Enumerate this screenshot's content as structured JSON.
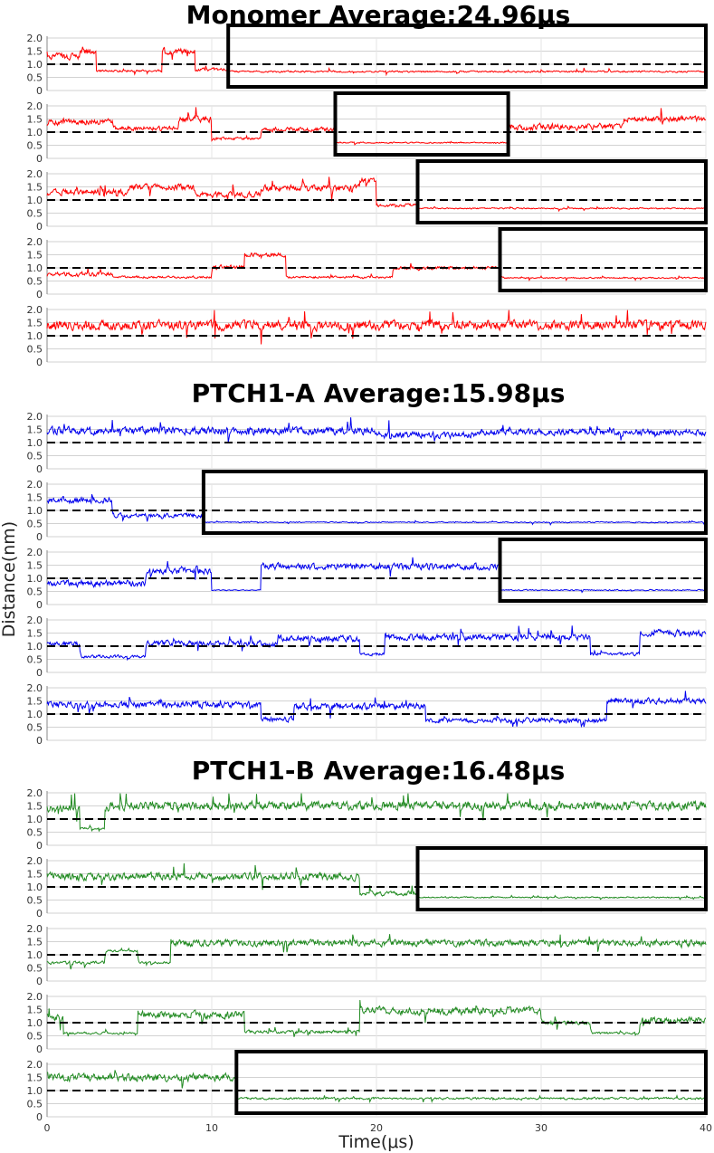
{
  "chart_data": {
    "type": "line",
    "xlabel": "Time(μs)",
    "ylabel": "Distance(nm)",
    "xlim": [
      0,
      40
    ],
    "ylim": [
      0,
      2.0
    ],
    "x_ticks": [
      "0",
      "10",
      "20",
      "30",
      "40"
    ],
    "y_ticks": [
      "0",
      "0.5",
      "1.0",
      "1.5",
      "2.0"
    ],
    "threshold_line": 1.0,
    "grid": true,
    "groups": [
      {
        "title": "Monomer Average:24.96μs",
        "color": "#ff0000",
        "runs": [
          {
            "segments": [
              [
                0,
                1.3,
                0.3
              ],
              [
                2,
                1.5,
                0.3
              ],
              [
                3,
                0.75,
                0.1
              ],
              [
                7,
                1.5,
                0.3
              ],
              [
                9,
                0.8,
                0.15
              ],
              [
                11,
                0.72,
                0.08
              ],
              [
                40,
                0
              ]
            ],
            "box": [
              11,
              40
            ]
          },
          {
            "segments": [
              [
                0,
                1.4,
                0.3
              ],
              [
                4,
                1.15,
                0.2
              ],
              [
                8,
                1.5,
                0.3
              ],
              [
                10,
                0.75,
                0.15
              ],
              [
                13,
                1.1,
                0.2
              ],
              [
                17.5,
                0.6,
                0.06
              ],
              [
                28,
                1.2,
                0.3
              ],
              [
                35,
                1.5,
                0.25
              ],
              [
                40,
                0
              ]
            ],
            "box": [
              17.5,
              28
            ]
          },
          {
            "segments": [
              [
                0,
                1.3,
                0.3
              ],
              [
                5,
                1.5,
                0.3
              ],
              [
                9,
                1.2,
                0.3
              ],
              [
                13,
                1.45,
                0.3
              ],
              [
                19,
                1.75,
                0.25
              ],
              [
                20,
                0.8,
                0.15
              ],
              [
                22.5,
                0.68,
                0.06
              ],
              [
                40,
                0
              ]
            ],
            "box": [
              22.5,
              40
            ]
          },
          {
            "segments": [
              [
                0,
                0.75,
                0.2
              ],
              [
                4,
                0.65,
                0.1
              ],
              [
                10,
                1.05,
                0.2
              ],
              [
                12,
                1.5,
                0.2
              ],
              [
                14.5,
                0.65,
                0.1
              ],
              [
                21,
                1.0,
                0.15
              ],
              [
                27.5,
                0.62,
                0.06
              ],
              [
                40,
                0
              ]
            ],
            "box": [
              27.5,
              40
            ]
          },
          {
            "segments": [
              [
                0,
                1.4,
                0.45
              ],
              [
                40,
                0
              ]
            ],
            "box": null
          }
        ]
      },
      {
        "title": "PTCH1-A Average:15.98μs",
        "color": "#0000ee",
        "runs": [
          {
            "segments": [
              [
                0,
                1.45,
                0.35
              ],
              [
                20,
                1.3,
                0.3
              ],
              [
                26,
                1.4,
                0.3
              ],
              [
                40,
                0
              ]
            ],
            "box": null
          },
          {
            "segments": [
              [
                0,
                1.4,
                0.3
              ],
              [
                4,
                0.8,
                0.2
              ],
              [
                9.5,
                0.55,
                0.05
              ],
              [
                40,
                0
              ]
            ],
            "box": [
              9.5,
              40
            ]
          },
          {
            "segments": [
              [
                0,
                0.8,
                0.3
              ],
              [
                6,
                1.3,
                0.35
              ],
              [
                10,
                0.55,
                0.05
              ],
              [
                13,
                1.45,
                0.3
              ],
              [
                27.5,
                0.55,
                0.05
              ],
              [
                40,
                0
              ]
            ],
            "box": [
              27.5,
              40
            ]
          },
          {
            "segments": [
              [
                0,
                1.1,
                0.25
              ],
              [
                2,
                0.6,
                0.15
              ],
              [
                6,
                1.1,
                0.25
              ],
              [
                14,
                1.3,
                0.3
              ],
              [
                19,
                0.7,
                0.15
              ],
              [
                20.5,
                1.35,
                0.3
              ],
              [
                33,
                0.7,
                0.15
              ],
              [
                36,
                1.5,
                0.3
              ],
              [
                40,
                0
              ]
            ],
            "box": null
          },
          {
            "segments": [
              [
                0,
                1.35,
                0.3
              ],
              [
                13,
                0.8,
                0.25
              ],
              [
                15,
                1.3,
                0.3
              ],
              [
                23,
                0.75,
                0.2
              ],
              [
                27,
                0.75,
                0.25
              ],
              [
                34,
                1.5,
                0.25
              ],
              [
                40,
                0
              ]
            ],
            "box": null
          }
        ]
      },
      {
        "title": "PTCH1-B Average:16.48μs",
        "color": "#228b22",
        "runs": [
          {
            "segments": [
              [
                0,
                1.4,
                0.35
              ],
              [
                2,
                0.65,
                0.08
              ],
              [
                3.5,
                1.5,
                0.4
              ],
              [
                40,
                0
              ]
            ],
            "box": null
          },
          {
            "segments": [
              [
                0,
                1.4,
                0.35
              ],
              [
                19,
                0.75,
                0.2
              ],
              [
                22.5,
                0.6,
                0.06
              ],
              [
                40,
                0
              ]
            ],
            "box": [
              22.5,
              40
            ]
          },
          {
            "segments": [
              [
                0,
                0.7,
                0.15
              ],
              [
                3.5,
                1.15,
                0.1
              ],
              [
                5.5,
                0.7,
                0.1
              ],
              [
                7.5,
                1.45,
                0.3
              ],
              [
                40,
                0
              ]
            ],
            "box": null
          },
          {
            "segments": [
              [
                0,
                1.2,
                0.3
              ],
              [
                1,
                0.6,
                0.1
              ],
              [
                5.5,
                1.3,
                0.35
              ],
              [
                12,
                0.65,
                0.15
              ],
              [
                19,
                1.45,
                0.35
              ],
              [
                30,
                1.0,
                0.2
              ],
              [
                33,
                0.6,
                0.1
              ],
              [
                36,
                1.1,
                0.3
              ],
              [
                40,
                0
              ]
            ],
            "box": null
          },
          {
            "segments": [
              [
                0,
                1.5,
                0.35
              ],
              [
                11.5,
                0.7,
                0.1
              ],
              [
                40,
                0
              ]
            ],
            "box": [
              11.5,
              40
            ]
          }
        ]
      }
    ]
  }
}
